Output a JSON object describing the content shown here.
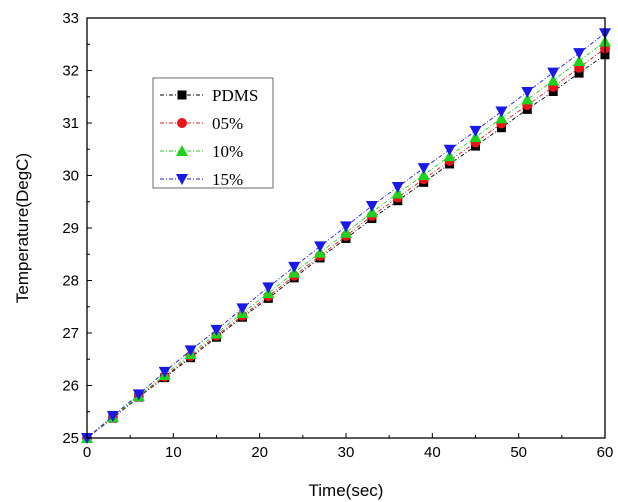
{
  "chart_data": {
    "type": "line",
    "title": "",
    "xlabel": "Time(sec)",
    "ylabel": "Temperature(DegC)",
    "xlim": [
      0,
      60
    ],
    "ylim": [
      25,
      33
    ],
    "xticks": [
      0,
      10,
      20,
      30,
      40,
      50,
      60
    ],
    "yticks": [
      25,
      26,
      27,
      28,
      29,
      30,
      31,
      32,
      33
    ],
    "grid": false,
    "legend_position": "upper-left",
    "x": [
      0,
      3,
      6,
      9,
      12,
      15,
      18,
      21,
      24,
      27,
      30,
      33,
      36,
      39,
      42,
      45,
      48,
      51,
      54,
      57,
      60
    ],
    "series": [
      {
        "name": "PDMS",
        "marker": "square",
        "color": "#000000",
        "values": [
          25.0,
          25.38,
          25.78,
          26.15,
          26.53,
          26.92,
          27.3,
          27.66,
          28.05,
          28.43,
          28.8,
          29.18,
          29.52,
          29.87,
          30.22,
          30.56,
          30.91,
          31.26,
          31.6,
          31.95,
          32.3
        ]
      },
      {
        "name": "05%",
        "marker": "circle",
        "color": "#e8141b",
        "values": [
          25.0,
          25.39,
          25.79,
          26.17,
          26.56,
          26.95,
          27.33,
          27.7,
          28.09,
          28.47,
          28.85,
          29.23,
          29.58,
          29.93,
          30.28,
          30.63,
          30.99,
          31.34,
          31.69,
          32.05,
          32.42
        ]
      },
      {
        "name": "10%",
        "marker": "triangle-up",
        "color": "#1ed21e",
        "values": [
          25.0,
          25.4,
          25.8,
          26.2,
          26.6,
          26.99,
          27.38,
          27.76,
          28.15,
          28.53,
          28.91,
          29.3,
          29.66,
          30.01,
          30.37,
          30.73,
          31.09,
          31.45,
          31.81,
          32.18,
          32.55
        ]
      },
      {
        "name": "15%",
        "marker": "triangle-down",
        "color": "#1a1ae6",
        "values": [
          25.0,
          25.42,
          25.83,
          26.26,
          26.67,
          27.06,
          27.47,
          27.87,
          28.26,
          28.65,
          29.03,
          29.42,
          29.78,
          30.14,
          30.49,
          30.85,
          31.22,
          31.59,
          31.96,
          32.33,
          32.71
        ]
      }
    ]
  }
}
